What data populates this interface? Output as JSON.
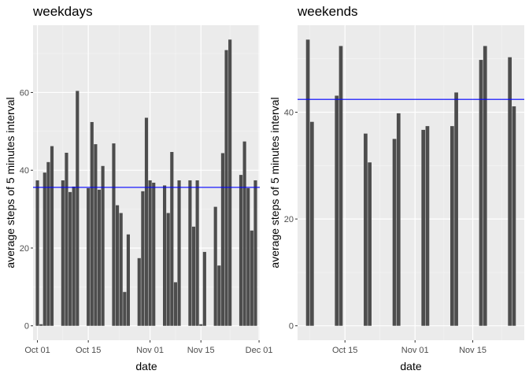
{
  "chart_data": [
    {
      "type": "bar",
      "title": "weekdays",
      "xlabel": "date",
      "ylabel": "average steps of 5 minutes interval",
      "x_date_start": "2012-10-01",
      "x": [
        0,
        1,
        2,
        3,
        4,
        7,
        8,
        9,
        10,
        11,
        14,
        15,
        16,
        17,
        18,
        21,
        22,
        23,
        24,
        25,
        28,
        29,
        30,
        31,
        32,
        35,
        36,
        37,
        38,
        39,
        42,
        43,
        44,
        45,
        46,
        49,
        50,
        51,
        52,
        53,
        56,
        57,
        58,
        59,
        60
      ],
      "values": [
        37.4,
        0.4,
        39.4,
        42.1,
        46.2,
        37.4,
        44.5,
        34.4,
        35.8,
        60.4,
        35.4,
        52.4,
        46.7,
        35.0,
        41.1,
        46.9,
        31.0,
        29.0,
        8.7,
        23.5,
        17.4,
        34.6,
        53.5,
        37.4,
        36.8,
        36.1,
        29.0,
        44.7,
        11.2,
        37.4,
        37.4,
        25.5,
        37.4,
        0.4,
        19.0,
        30.6,
        15.5,
        44.4,
        70.9,
        73.6,
        38.8,
        47.4,
        35.4,
        24.5,
        37.4
      ],
      "mean_line": 35.6,
      "mean_line_color": "#0000ff",
      "bar_color": "#4d4d4d",
      "xlim": [
        -1.2,
        61.2
      ],
      "ylim": [
        -3.7,
        77.3
      ],
      "x_ticks": [
        {
          "at": 0,
          "label": "Oct 01"
        },
        {
          "at": 14,
          "label": "Oct 15"
        },
        {
          "at": 31,
          "label": "Nov 01"
        },
        {
          "at": 45,
          "label": "Nov 15"
        },
        {
          "at": 61,
          "label": "Dec 01"
        }
      ],
      "y_ticks": [
        0,
        20,
        40,
        60
      ]
    },
    {
      "type": "bar",
      "title": "weekends",
      "xlabel": "date",
      "ylabel": "average steps of 5 minutes interval",
      "x_date_start": "2012-10-01",
      "x": [
        5,
        6,
        12,
        13,
        19,
        20,
        26,
        27,
        33,
        34,
        40,
        41,
        47,
        48,
        54,
        55
      ],
      "values": [
        53.6,
        38.2,
        43.1,
        52.4,
        36.0,
        30.6,
        35.0,
        39.8,
        36.7,
        37.4,
        37.4,
        43.7,
        49.8,
        52.4,
        50.3,
        41.1
      ],
      "mean_line": 42.4,
      "mean_line_color": "#0000ff",
      "bar_color": "#4d4d4d",
      "xlim": [
        2.5,
        57.5
      ],
      "ylim": [
        -2.7,
        56.3
      ],
      "x_ticks": [
        {
          "at": 14,
          "label": "Oct 15"
        },
        {
          "at": 31,
          "label": "Nov 01"
        },
        {
          "at": 45,
          "label": "Nov 15"
        }
      ],
      "y_ticks": [
        0,
        20,
        40
      ]
    }
  ]
}
